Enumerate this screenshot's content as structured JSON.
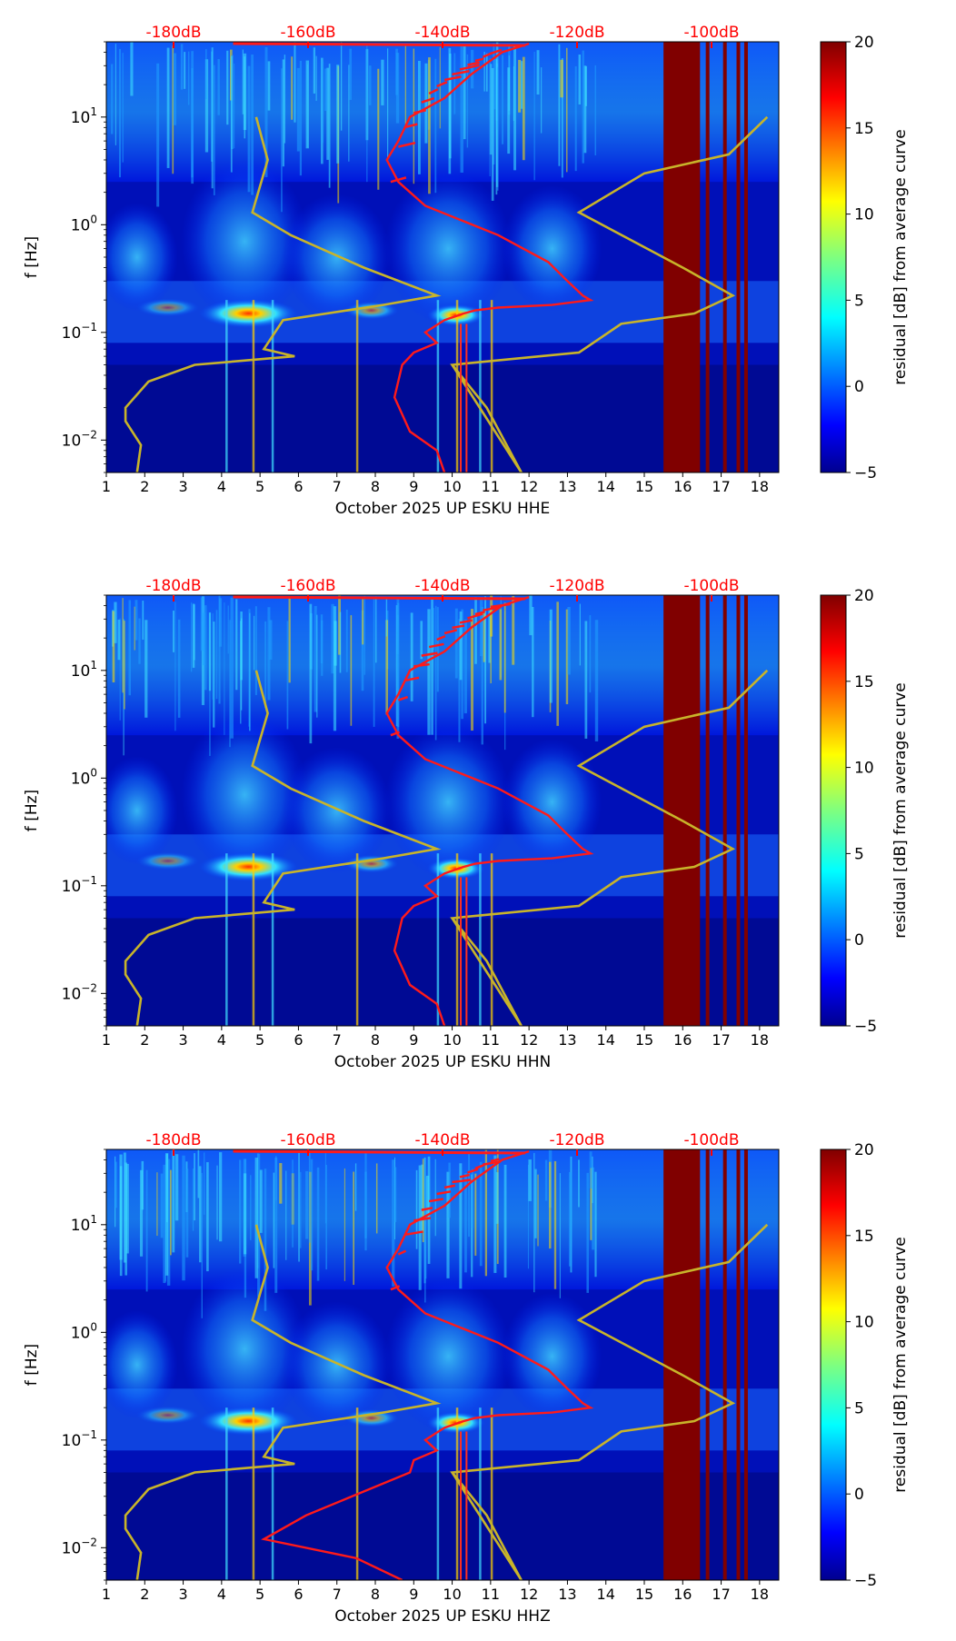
{
  "chart_data": [
    {
      "type": "heatmap",
      "xlabel": "October 2025 UP ESKU  HHE",
      "ylabel": "f [Hz]",
      "colorbar_label": "residual [dB] from average curve",
      "colorbar_ticks": [
        "20",
        "15",
        "10",
        "5",
        "0",
        "−5"
      ],
      "x_ticks": [
        "1",
        "2",
        "3",
        "4",
        "5",
        "6",
        "7",
        "8",
        "9",
        "10",
        "11",
        "12",
        "13",
        "14",
        "15",
        "16",
        "17",
        "18"
      ],
      "y_tick_labels": [
        {
          "base": "10",
          "exp": "1"
        },
        {
          "base": "10",
          "exp": "0"
        },
        {
          "base": "10",
          "exp": "−1"
        },
        {
          "base": "10",
          "exp": "−2"
        }
      ],
      "top_ticks": [
        "-180dB",
        "-160dB",
        "-140dB",
        "-120dB",
        "-100dB"
      ],
      "xlim": [
        1,
        18.5
      ],
      "ylim": [
        0.005,
        50
      ],
      "clim": [
        -5,
        20
      ],
      "noise_model_curves": "yellow (low/high reference models)",
      "average_curve": "red"
    },
    {
      "type": "heatmap",
      "xlabel": "October 2025 UP ESKU  HHN",
      "ylabel": "f [Hz]",
      "colorbar_label": "residual [dB] from average curve",
      "colorbar_ticks": [
        "20",
        "15",
        "10",
        "5",
        "0",
        "−5"
      ],
      "x_ticks": [
        "1",
        "2",
        "3",
        "4",
        "5",
        "6",
        "7",
        "8",
        "9",
        "10",
        "11",
        "12",
        "13",
        "14",
        "15",
        "16",
        "17",
        "18"
      ],
      "y_tick_labels": [
        {
          "base": "10",
          "exp": "1"
        },
        {
          "base": "10",
          "exp": "0"
        },
        {
          "base": "10",
          "exp": "−1"
        },
        {
          "base": "10",
          "exp": "−2"
        }
      ],
      "top_ticks": [
        "-180dB",
        "-160dB",
        "-140dB",
        "-120dB",
        "-100dB"
      ],
      "xlim": [
        1,
        18.5
      ],
      "ylim": [
        0.005,
        50
      ],
      "clim": [
        -5,
        20
      ],
      "noise_model_curves": "yellow (low/high reference models)",
      "average_curve": "red"
    },
    {
      "type": "heatmap",
      "xlabel": "October 2025 UP ESKU  HHZ",
      "ylabel": "f [Hz]",
      "colorbar_label": "residual [dB] from average curve",
      "colorbar_ticks": [
        "20",
        "15",
        "10",
        "5",
        "0",
        "−5"
      ],
      "x_ticks": [
        "1",
        "2",
        "3",
        "4",
        "5",
        "6",
        "7",
        "8",
        "9",
        "10",
        "11",
        "12",
        "13",
        "14",
        "15",
        "16",
        "17",
        "18"
      ],
      "y_tick_labels": [
        {
          "base": "10",
          "exp": "1"
        },
        {
          "base": "10",
          "exp": "0"
        },
        {
          "base": "10",
          "exp": "−1"
        },
        {
          "base": "10",
          "exp": "−2"
        }
      ],
      "top_ticks": [
        "-180dB",
        "-160dB",
        "-140dB",
        "-120dB",
        "-100dB"
      ],
      "xlim": [
        1,
        18.5
      ],
      "ylim": [
        0.005,
        50
      ],
      "clim": [
        -5,
        20
      ],
      "noise_model_curves": "yellow (low/high reference models)",
      "average_curve": "red"
    }
  ],
  "colors": {
    "average_curve": "#ff1a1a",
    "model_curve": "#c8b42a",
    "top_tick_text": "#ff0000",
    "background_min": "#00008f",
    "saturated": "#800000"
  }
}
